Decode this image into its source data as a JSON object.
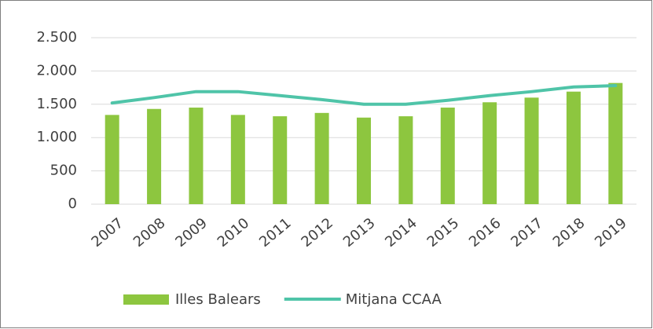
{
  "chart_data": {
    "type": "bar",
    "categories": [
      "2007",
      "2008",
      "2009",
      "2010",
      "2011",
      "2012",
      "2013",
      "2014",
      "2015",
      "2016",
      "2017",
      "2018",
      "2019"
    ],
    "series": [
      {
        "name": "Illes Balears",
        "type": "bar",
        "color": "#8dc63f",
        "values": [
          1340,
          1430,
          1450,
          1340,
          1320,
          1370,
          1300,
          1320,
          1450,
          1530,
          1600,
          1690,
          1820
        ]
      },
      {
        "name": "Mitjana CCAA",
        "type": "line",
        "color": "#4fc4a8",
        "values": [
          1520,
          1600,
          1690,
          1690,
          1630,
          1570,
          1500,
          1500,
          1560,
          1630,
          1690,
          1760,
          1780
        ]
      }
    ],
    "ylim": [
      0,
      2500
    ],
    "yticks": [
      0,
      500,
      {
        "value": 1000,
        "label": "1.000"
      },
      {
        "value": 1500,
        "label": "1.500"
      },
      {
        "value": 2000,
        "label": "2.000"
      },
      {
        "value": 2500,
        "label": "2.500"
      }
    ],
    "grid": true,
    "legend": "bottom"
  }
}
